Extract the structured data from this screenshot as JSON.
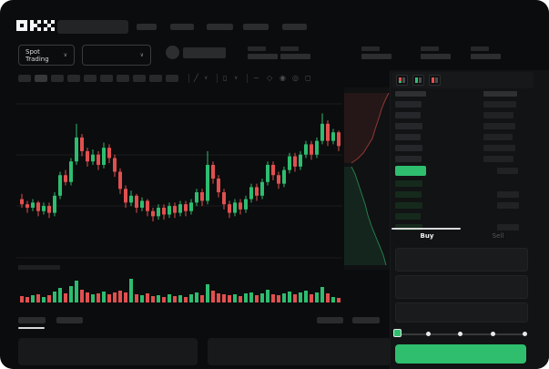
{
  "colors": {
    "bg": "#0b0c0d",
    "green": "#2ebd70",
    "red": "#e0504f",
    "buy_green": "#2fbe6e",
    "grid": "#1c1d1f",
    "depth_red_fill": "rgba(224,80,79,0.10)",
    "depth_green_fill": "rgba(46,189,112,0.12)"
  },
  "header": {
    "logo": "OKX",
    "nav_placeholder_count": 5
  },
  "subheader": {
    "market_selector": "Spot Trading"
  },
  "icons": {
    "chevron_down": "∨",
    "line_tool": "╱",
    "candle_type": "▯",
    "indicator": "~",
    "draw": "◇",
    "camera": "◉",
    "settings": "◎",
    "fullscreen": "◻"
  },
  "chart_toolbar": {
    "timeframe_placeholders": 10,
    "active_timeframe_index": 1
  },
  "orderbook": {
    "view_toggles": [
      "book-all",
      "book-bids",
      "book-asks"
    ],
    "asks": [
      {
        "price_w": 29,
        "amount_w": 36
      },
      {
        "price_w": 28,
        "amount_w": 33
      },
      {
        "price_w": 30,
        "amount_w": 35
      },
      {
        "price_w": 28,
        "amount_w": 32
      },
      {
        "price_w": 30,
        "amount_w": 35
      },
      {
        "price_w": 29,
        "amount_w": 33
      }
    ],
    "last_price_row": {
      "highlight": "green",
      "amount_w": 23
    },
    "bids": [
      {
        "price_w": 30,
        "amount_w": null
      },
      {
        "price_w": 29,
        "amount_w": 24
      },
      {
        "price_w": 30,
        "amount_w": 24
      },
      {
        "price_w": 28,
        "amount_w": null
      },
      {
        "price_w": 30,
        "amount_w": 24
      }
    ]
  },
  "trade": {
    "buy_label": "Buy",
    "sell_label": "Sell",
    "slider_steps": 5,
    "slider_active_step": 0,
    "field_placeholders": 3
  },
  "chart_data": {
    "type": "candlestick",
    "title": "",
    "xlabel": "",
    "ylabel": "",
    "price_scale": [
      0,
      100
    ],
    "grid": true,
    "gridlines_y_rel": [
      18,
      74,
      130,
      187
    ],
    "candles": [
      [
        38,
        35,
        41,
        33
      ],
      [
        35,
        33,
        37,
        30
      ],
      [
        33,
        36,
        38,
        31
      ],
      [
        36,
        31,
        37,
        28
      ],
      [
        31,
        34,
        36,
        29
      ],
      [
        34,
        30,
        36,
        27
      ],
      [
        30,
        40,
        42,
        28
      ],
      [
        40,
        52,
        54,
        38
      ],
      [
        52,
        48,
        55,
        46
      ],
      [
        48,
        60,
        62,
        46
      ],
      [
        60,
        74,
        82,
        58
      ],
      [
        74,
        66,
        76,
        63
      ],
      [
        66,
        60,
        68,
        57
      ],
      [
        60,
        64,
        67,
        58
      ],
      [
        64,
        58,
        66,
        55
      ],
      [
        58,
        68,
        71,
        56
      ],
      [
        68,
        62,
        70,
        59
      ],
      [
        62,
        54,
        64,
        51
      ],
      [
        54,
        44,
        56,
        41
      ],
      [
        44,
        36,
        46,
        33
      ],
      [
        36,
        40,
        43,
        34
      ],
      [
        40,
        33,
        41,
        30
      ],
      [
        33,
        37,
        39,
        31
      ],
      [
        37,
        31,
        38,
        28
      ],
      [
        31,
        28,
        33,
        25
      ],
      [
        28,
        33,
        35,
        26
      ],
      [
        33,
        29,
        35,
        26
      ],
      [
        29,
        34,
        36,
        27
      ],
      [
        34,
        30,
        36,
        27
      ],
      [
        30,
        35,
        37,
        28
      ],
      [
        35,
        31,
        37,
        28
      ],
      [
        31,
        36,
        38,
        29
      ],
      [
        36,
        42,
        44,
        34
      ],
      [
        42,
        37,
        44,
        34
      ],
      [
        37,
        58,
        66,
        35
      ],
      [
        58,
        50,
        60,
        47
      ],
      [
        50,
        42,
        52,
        39
      ],
      [
        42,
        35,
        44,
        32
      ],
      [
        35,
        30,
        37,
        27
      ],
      [
        30,
        36,
        38,
        28
      ],
      [
        36,
        32,
        38,
        29
      ],
      [
        32,
        38,
        40,
        30
      ],
      [
        38,
        45,
        47,
        36
      ],
      [
        45,
        40,
        47,
        37
      ],
      [
        40,
        48,
        50,
        38
      ],
      [
        48,
        58,
        60,
        46
      ],
      [
        58,
        52,
        60,
        49
      ],
      [
        52,
        47,
        54,
        44
      ],
      [
        47,
        55,
        57,
        45
      ],
      [
        55,
        63,
        65,
        53
      ],
      [
        63,
        57,
        65,
        54
      ],
      [
        57,
        64,
        66,
        55
      ],
      [
        64,
        70,
        72,
        62
      ],
      [
        70,
        64,
        72,
        61
      ],
      [
        64,
        72,
        74,
        62
      ],
      [
        72,
        82,
        88,
        70
      ],
      [
        82,
        72,
        84,
        69
      ],
      [
        72,
        77,
        79,
        70
      ],
      [
        77,
        69,
        78,
        66
      ]
    ],
    "volume": [
      7,
      6,
      8,
      9,
      6,
      8,
      12,
      16,
      10,
      18,
      24,
      14,
      11,
      9,
      10,
      12,
      9,
      11,
      13,
      11,
      26,
      9,
      8,
      10,
      7,
      8,
      6,
      9,
      7,
      8,
      6,
      9,
      11,
      8,
      20,
      13,
      10,
      9,
      8,
      9,
      7,
      10,
      11,
      8,
      10,
      14,
      9,
      8,
      10,
      12,
      9,
      11,
      13,
      9,
      11,
      17,
      10,
      6,
      5
    ],
    "depth": {
      "asks_line": [
        [
          49,
          6
        ],
        [
          45,
          14
        ],
        [
          41,
          24
        ],
        [
          38,
          34
        ],
        [
          34,
          46
        ],
        [
          31,
          56
        ],
        [
          26,
          64
        ],
        [
          21,
          72
        ],
        [
          15,
          78
        ],
        [
          8,
          83
        ]
      ],
      "bids_line": [
        [
          8,
          87
        ],
        [
          12,
          95
        ],
        [
          15,
          104
        ],
        [
          19,
          116
        ],
        [
          23,
          128
        ],
        [
          26,
          140
        ],
        [
          30,
          152
        ],
        [
          34,
          162
        ],
        [
          39,
          174
        ],
        [
          43,
          184
        ],
        [
          46,
          195
        ]
      ]
    }
  }
}
